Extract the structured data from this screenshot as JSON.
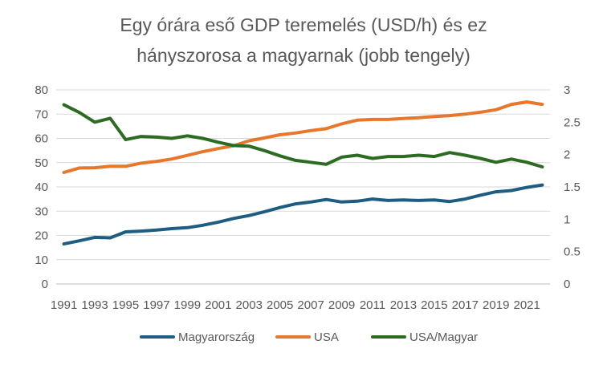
{
  "chart_data": {
    "type": "line",
    "title_lines": [
      "Egy órára eső GDP teremelés (USD/h) és ez",
      "hányszorosa a magyarnak (jobb tengely)"
    ],
    "x": [
      1991,
      1992,
      1993,
      1994,
      1995,
      1996,
      1997,
      1998,
      1999,
      2000,
      2001,
      2002,
      2003,
      2004,
      2005,
      2006,
      2007,
      2008,
      2009,
      2010,
      2011,
      2012,
      2013,
      2014,
      2015,
      2016,
      2017,
      2018,
      2019,
      2020,
      2021,
      2022
    ],
    "x_tick_labels": [
      "1991",
      "1993",
      "1995",
      "1997",
      "1999",
      "2001",
      "2003",
      "2005",
      "2007",
      "2009",
      "2011",
      "2013",
      "2015",
      "2017",
      "2019",
      "2021"
    ],
    "y_left": {
      "range": [
        0,
        80
      ],
      "ticks": [
        "0",
        "10",
        "20",
        "30",
        "40",
        "50",
        "60",
        "70",
        "80"
      ]
    },
    "y_right": {
      "range": [
        0,
        3
      ],
      "ticks": [
        "0",
        "0.5",
        "1",
        "1.5",
        "2",
        "2.5",
        "3"
      ]
    },
    "grid": true,
    "legend_position": "bottom",
    "series": [
      {
        "name": "Magyarország",
        "axis": "left",
        "color": "#1f5c82",
        "values": [
          16.5,
          17.8,
          19.2,
          19.0,
          21.5,
          21.8,
          22.2,
          22.8,
          23.2,
          24.2,
          25.5,
          27.0,
          28.2,
          29.8,
          31.5,
          33.0,
          33.8,
          34.8,
          33.8,
          34.1,
          35.0,
          34.4,
          34.6,
          34.4,
          34.6,
          34.0,
          35.0,
          36.6,
          38.0,
          38.5,
          39.8,
          40.8
        ]
      },
      {
        "name": "USA",
        "axis": "left",
        "color": "#e8772e",
        "values": [
          46.0,
          47.8,
          47.9,
          48.5,
          48.5,
          49.8,
          50.5,
          51.5,
          53.0,
          54.5,
          55.8,
          57.0,
          59.0,
          60.2,
          61.5,
          62.2,
          63.2,
          64.0,
          66.0,
          67.5,
          67.8,
          67.8,
          68.2,
          68.5,
          69.0,
          69.4,
          70.0,
          70.8,
          71.8,
          74.0,
          75.0,
          74.0
        ]
      },
      {
        "name": "USA/Magyar",
        "axis": "right",
        "color": "#2e6b22",
        "values": [
          2.77,
          2.65,
          2.5,
          2.56,
          2.23,
          2.28,
          2.27,
          2.25,
          2.29,
          2.25,
          2.19,
          2.14,
          2.13,
          2.06,
          1.98,
          1.91,
          1.88,
          1.85,
          1.96,
          1.99,
          1.94,
          1.97,
          1.97,
          1.99,
          1.97,
          2.03,
          1.99,
          1.94,
          1.88,
          1.93,
          1.88,
          1.81
        ]
      }
    ]
  }
}
